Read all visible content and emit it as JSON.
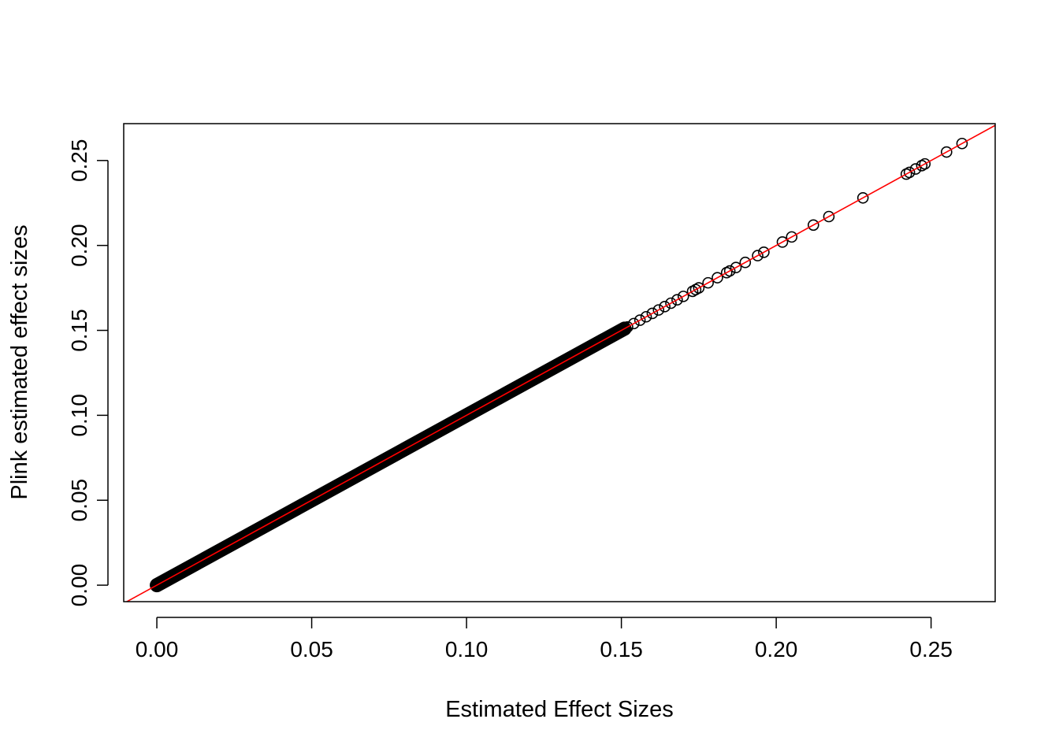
{
  "chart_data": {
    "type": "scatter",
    "title": "",
    "xlabel": "Estimated Effect Sizes",
    "ylabel": "Plink estimated effect sizes",
    "xlim": [
      -0.0107,
      0.2707
    ],
    "ylim": [
      -0.0097,
      0.2717
    ],
    "x_ticks": [
      "0.00",
      "0.05",
      "0.10",
      "0.15",
      "0.20",
      "0.25"
    ],
    "y_ticks": [
      "0.00",
      "0.05",
      "0.10",
      "0.15",
      "0.20",
      "0.25"
    ],
    "grid": false,
    "legend": "none",
    "reference_line": {
      "type": "identity",
      "slope": 1,
      "intercept": 0,
      "color": "#ff0000"
    },
    "marker": {
      "shape": "open-circle",
      "color": "#000000"
    },
    "dense_band": {
      "from": 0.0,
      "to": 0.151,
      "note": "continuous run of points along y = x"
    },
    "points": [
      [
        0.152,
        0.152
      ],
      [
        0.154,
        0.154
      ],
      [
        0.156,
        0.156
      ],
      [
        0.158,
        0.158
      ],
      [
        0.16,
        0.16
      ],
      [
        0.162,
        0.162
      ],
      [
        0.164,
        0.164
      ],
      [
        0.166,
        0.166
      ],
      [
        0.168,
        0.168
      ],
      [
        0.17,
        0.17
      ],
      [
        0.173,
        0.173
      ],
      [
        0.174,
        0.174
      ],
      [
        0.175,
        0.175
      ],
      [
        0.178,
        0.178
      ],
      [
        0.181,
        0.181
      ],
      [
        0.184,
        0.184
      ],
      [
        0.185,
        0.185
      ],
      [
        0.187,
        0.187
      ],
      [
        0.19,
        0.19
      ],
      [
        0.194,
        0.194
      ],
      [
        0.196,
        0.196
      ],
      [
        0.202,
        0.202
      ],
      [
        0.205,
        0.205
      ],
      [
        0.212,
        0.212
      ],
      [
        0.217,
        0.217
      ],
      [
        0.228,
        0.228
      ],
      [
        0.242,
        0.242
      ],
      [
        0.243,
        0.243
      ],
      [
        0.245,
        0.245
      ],
      [
        0.247,
        0.247
      ],
      [
        0.248,
        0.248
      ],
      [
        0.255,
        0.255
      ],
      [
        0.26,
        0.26
      ]
    ],
    "colors": {
      "points": "#000000",
      "reference_line": "#ff0000",
      "axes": "#000000"
    }
  }
}
